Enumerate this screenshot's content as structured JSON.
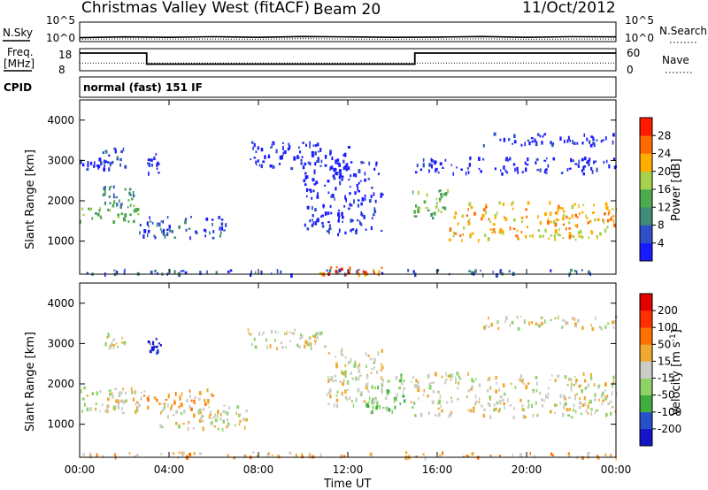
{
  "header": {
    "station": "Christmas Valley West (fitACF)",
    "beam": "Beam 20",
    "date": "11/Oct/2012"
  },
  "chart_data": [
    {
      "type": "line",
      "panel": "noise",
      "left_label": "N.Sky",
      "right_label": "N.Search",
      "left_ticks": [
        "10^5",
        "10^0"
      ],
      "right_ticks": [
        "10^5",
        "10^0"
      ],
      "x_range_hours": [
        0,
        24
      ],
      "series": [
        {
          "name": "N.Sky",
          "style": "solid",
          "x": [
            0,
            2,
            4,
            6,
            8,
            10,
            12,
            14,
            16,
            18,
            20,
            22,
            24
          ],
          "y_frac": [
            0.2,
            0.24,
            0.22,
            0.25,
            0.22,
            0.26,
            0.24,
            0.22,
            0.23,
            0.26,
            0.22,
            0.25,
            0.24
          ]
        },
        {
          "name": "N.Search",
          "style": "dotted",
          "x": [
            0,
            2,
            4,
            6,
            8,
            10,
            12,
            14,
            16,
            18,
            20,
            22,
            24
          ],
          "y_frac": [
            0.12,
            0.14,
            0.13,
            0.13,
            0.12,
            0.15,
            0.13,
            0.12,
            0.13,
            0.14,
            0.12,
            0.13,
            0.13
          ]
        }
      ]
    },
    {
      "type": "line",
      "panel": "frequency",
      "left_label_1": "Freq.",
      "left_label_2": "[MHz]",
      "right_label": "Nave",
      "left_ticks": [
        "18",
        "8"
      ],
      "right_ticks": [
        "60",
        "0"
      ],
      "x_range_hours": [
        0,
        24
      ],
      "series": [
        {
          "name": "Freq.",
          "style": "solid",
          "x": [
            0,
            3.0,
            3.0,
            15.0,
            15.0,
            24
          ],
          "y": [
            16,
            16,
            11,
            11,
            16,
            16
          ]
        },
        {
          "name": "Nave",
          "style": "dotted",
          "x": [
            0,
            24
          ],
          "y": [
            21,
            21
          ]
        }
      ]
    },
    {
      "type": "table",
      "panel": "cpid",
      "label": "CPID",
      "mode": "normal (fast) 151 IF"
    },
    {
      "type": "heatmap",
      "panel": "power",
      "ylabel": "Slant Range [km]",
      "xlim": [
        0,
        24
      ],
      "ylim": [
        180,
        4500
      ],
      "yticks": [
        "1000",
        "2000",
        "3000",
        "4000"
      ],
      "colorbar": {
        "label": "Power [dB]",
        "ticks": [
          "4",
          "8",
          "12",
          "16",
          "20",
          "24",
          "28"
        ],
        "colors": [
          "#1a1aff",
          "#2e4fc8",
          "#3f8a78",
          "#4cab4c",
          "#a8d24c",
          "#ffae00",
          "#ff6a00",
          "#ff1a00"
        ]
      },
      "echo_regions": [
        {
          "t0": 0.0,
          "t1": 2.6,
          "r0": 1500,
          "r1": 1950,
          "level": 3
        },
        {
          "t0": 1.0,
          "t1": 2.4,
          "r0": 1750,
          "r1": 2400,
          "level": 2
        },
        {
          "t0": 1.0,
          "t1": 2.0,
          "r0": 2800,
          "r1": 3350,
          "level": 1
        },
        {
          "t0": 2.6,
          "t1": 6.5,
          "r0": 1100,
          "r1": 1650,
          "level": 1
        },
        {
          "t0": 0.0,
          "t1": 1.2,
          "r0": 2800,
          "r1": 3100,
          "level": 0
        },
        {
          "t0": 3.0,
          "t1": 3.6,
          "r0": 2700,
          "r1": 3200,
          "level": 0
        },
        {
          "t0": 7.5,
          "t1": 12.0,
          "r0": 2800,
          "r1": 3500,
          "level": 0
        },
        {
          "t0": 10.0,
          "t1": 13.5,
          "r0": 1200,
          "r1": 3000,
          "level": 0
        },
        {
          "t0": 14.8,
          "t1": 16.5,
          "r0": 1600,
          "r1": 2300,
          "level": 3
        },
        {
          "t0": 16.5,
          "t1": 24.0,
          "r0": 1050,
          "r1": 2000,
          "level": 5
        },
        {
          "t0": 15.0,
          "t1": 24.0,
          "r0": 2700,
          "r1": 3100,
          "level": 0
        },
        {
          "t0": 18.0,
          "t1": 24.0,
          "r0": 3400,
          "r1": 3700,
          "level": 0
        },
        {
          "t0": 0.0,
          "t1": 24.0,
          "r0": 200,
          "r1": 320,
          "level": 1
        },
        {
          "t0": 10.5,
          "t1": 13.5,
          "r0": 200,
          "r1": 400,
          "level": 6
        }
      ]
    },
    {
      "type": "heatmap",
      "panel": "velocity",
      "ylabel": "Slant Range [km]",
      "xlabel": "Time UT",
      "xlim": [
        0,
        24
      ],
      "ylim": [
        180,
        4500
      ],
      "yticks": [
        "1000",
        "2000",
        "3000",
        "4000"
      ],
      "xticks": [
        "00:00",
        "04:00",
        "08:00",
        "12:00",
        "16:00",
        "20:00",
        "00:00"
      ],
      "colorbar": {
        "label": "Velocity [m s^-1]",
        "ticks": [
          "200",
          "100",
          "50",
          "15",
          "-15",
          "-50",
          "-100",
          "-200"
        ],
        "colors": [
          "#1414c8",
          "#2850c8",
          "#3fae3f",
          "#8ed36a",
          "#cccdc6",
          "#f0a830",
          "#ff7000",
          "#ff3000",
          "#e00000"
        ]
      },
      "echo_regions": [
        {
          "t0": 0.0,
          "t1": 2.6,
          "r0": 1300,
          "r1": 1950,
          "level": 4
        },
        {
          "t0": 1.5,
          "t1": 6.0,
          "r0": 1400,
          "r1": 1900,
          "level": 5
        },
        {
          "t0": 3.5,
          "t1": 7.5,
          "r0": 900,
          "r1": 1500,
          "level": 4
        },
        {
          "t0": 1.0,
          "t1": 2.0,
          "r0": 2900,
          "r1": 3300,
          "level": 4
        },
        {
          "t0": 3.0,
          "t1": 3.6,
          "r0": 2800,
          "r1": 3200,
          "level": 0
        },
        {
          "t0": 7.5,
          "t1": 11.0,
          "r0": 2900,
          "r1": 3400,
          "level": 4
        },
        {
          "t0": 11.0,
          "t1": 13.5,
          "r0": 1500,
          "r1": 2900,
          "level": 4
        },
        {
          "t0": 12.8,
          "t1": 14.5,
          "r0": 1300,
          "r1": 2300,
          "level": 3
        },
        {
          "t0": 14.8,
          "t1": 24.0,
          "r0": 1200,
          "r1": 2300,
          "level": 4
        },
        {
          "t0": 18.0,
          "t1": 24.0,
          "r0": 3400,
          "r1": 3700,
          "level": 4
        },
        {
          "t0": 0.0,
          "t1": 24.0,
          "r0": 200,
          "r1": 330,
          "level": 5
        }
      ]
    }
  ]
}
